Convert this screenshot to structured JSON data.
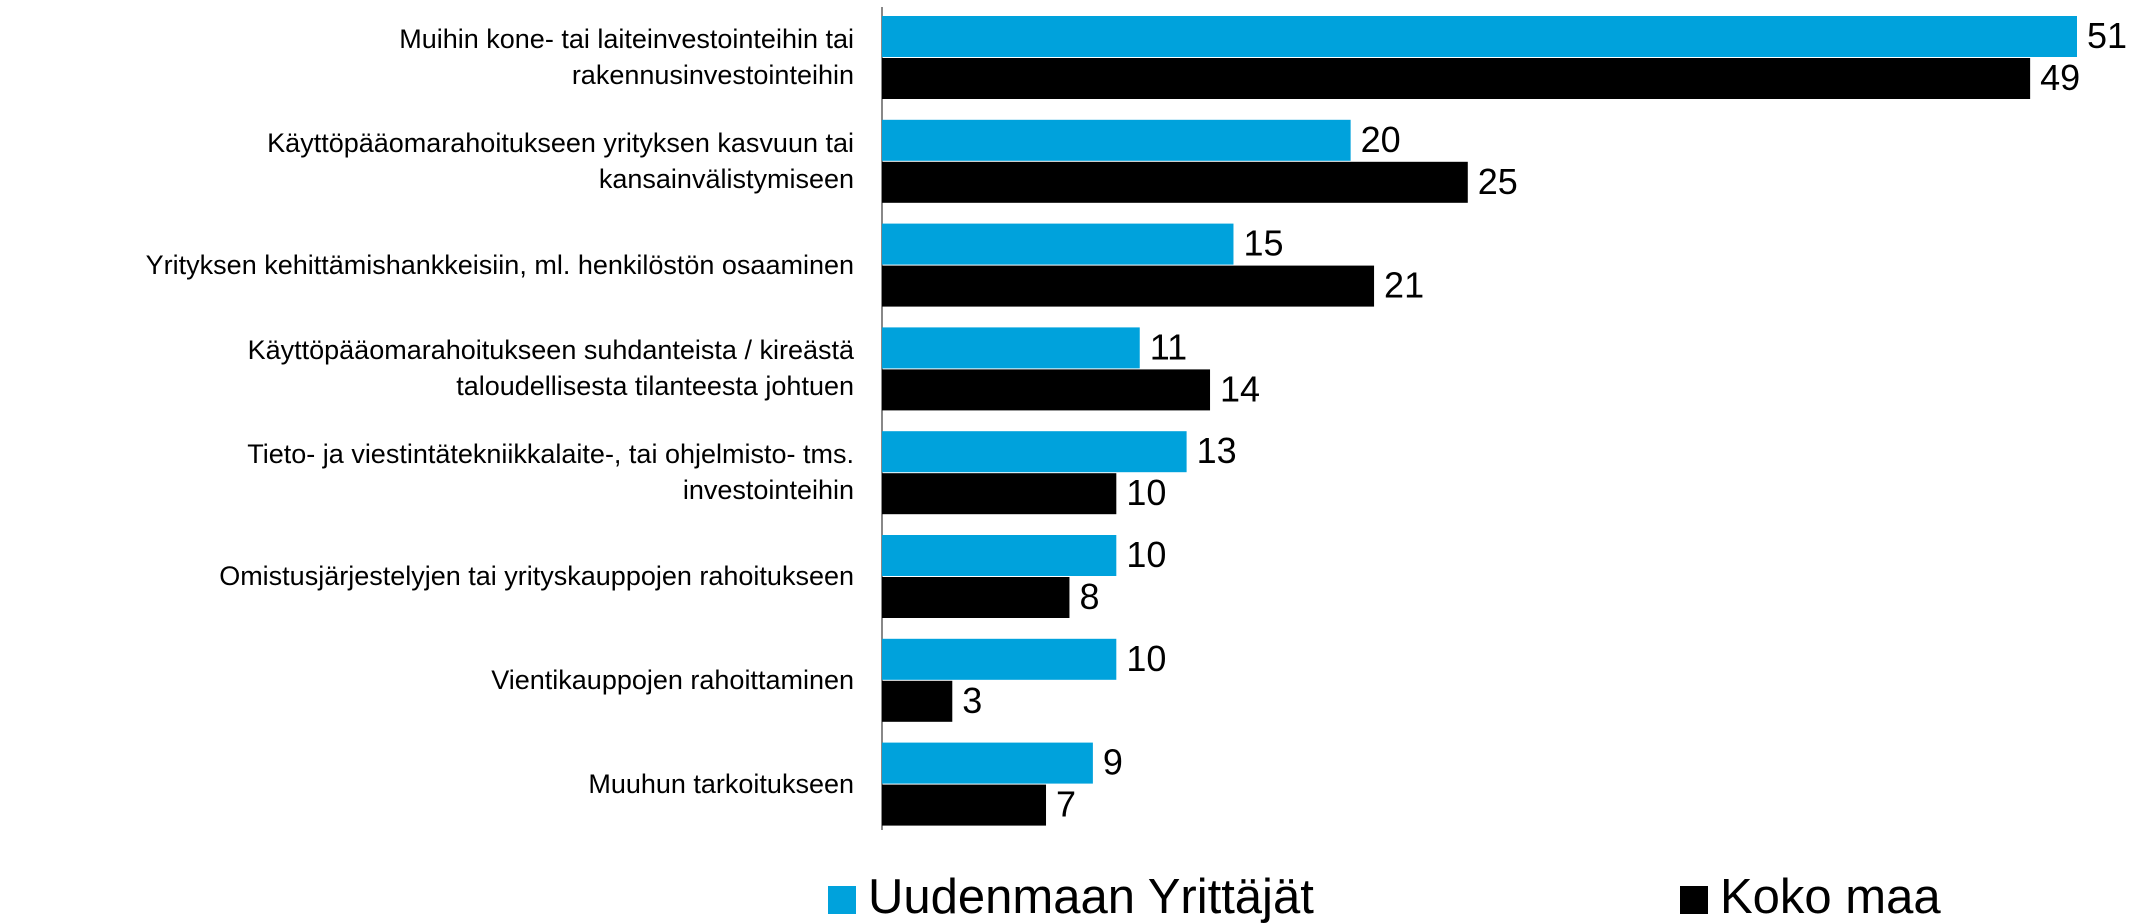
{
  "chart_data": {
    "type": "barh",
    "categories": [
      "Muihin kone- tai laiteinvestointeihin tai\nrakennusinvestointeihin",
      "Käyttöpääomarahoitukseen yrityksen kasvuun tai\nkansainvälistymiseen",
      "Yrityksen kehittämishankkeisiin, ml. henkilöstön osaaminen",
      "Käyttöpääomarahoitukseen suhdanteista / kireästä\ntaloudellisesta tilanteesta johtuen",
      "Tieto- ja viestintätekniikkalaite-, tai ohjelmisto- tms.\ninvestointeihin",
      "Omistusjärjestelyjen tai yrityskauppojen rahoitukseen",
      "Vientikauppojen rahoittaminen",
      "Muuhun tarkoitukseen"
    ],
    "series": [
      {
        "name": "Uudenmaan Yrittäjät",
        "color": "#00a2dc",
        "values": [
          51,
          20,
          15,
          11,
          13,
          10,
          10,
          9
        ]
      },
      {
        "name": "Koko maa",
        "color": "#000000",
        "values": [
          49,
          25,
          21,
          14,
          10,
          8,
          3,
          7
        ]
      }
    ],
    "legend": "bottom"
  }
}
